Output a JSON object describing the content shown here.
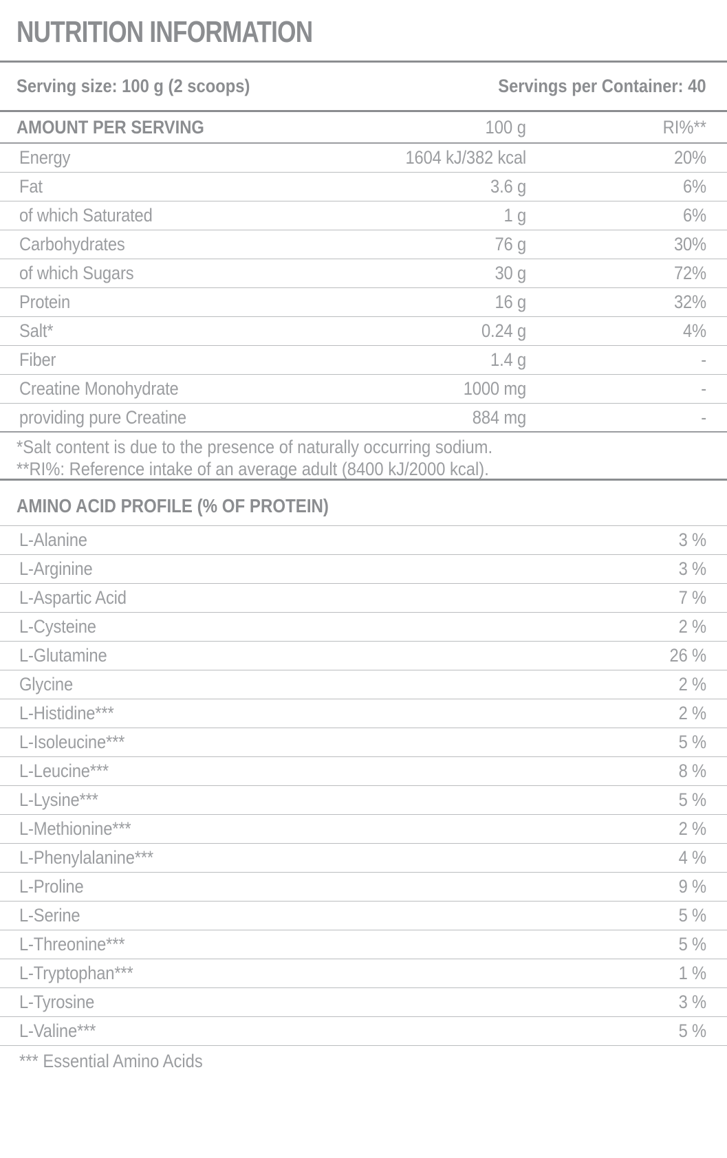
{
  "colors": {
    "heading_gray": "#8b8d90",
    "body_gray": "#9b9da0",
    "thin_rule": "#babcbe",
    "background": "#ffffff"
  },
  "title": "NUTRITION INFORMATION",
  "serving_info": {
    "serving_size": "Serving size: 100 g (2 scoops)",
    "servings_per_container": "Servings per Container: 40"
  },
  "amount_table": {
    "header": {
      "label": "AMOUNT PER SERVING",
      "amount": "100 g",
      "ri": "RI%**"
    },
    "rows": [
      {
        "label": "Energy",
        "amount": "1604 kJ/382 kcal",
        "ri": "20%"
      },
      {
        "label": "Fat",
        "amount": "3.6 g",
        "ri": "6%"
      },
      {
        "label": "of which Saturated",
        "amount": "1 g",
        "ri": "6%"
      },
      {
        "label": "Carbohydrates",
        "amount": "76 g",
        "ri": "30%"
      },
      {
        "label": "of which Sugars",
        "amount": "30 g",
        "ri": "72%"
      },
      {
        "label": "Protein",
        "amount": "16 g",
        "ri": "32%"
      },
      {
        "label": "Salt*",
        "amount": "0.24 g",
        "ri": "4%"
      },
      {
        "label": "Fiber",
        "amount": "1.4 g",
        "ri": "-"
      },
      {
        "label": "Creatine Monohydrate",
        "amount": "1000 mg",
        "ri": "-"
      },
      {
        "label": "providing pure Creatine",
        "amount": "884 mg",
        "ri": "-"
      }
    ],
    "footnotes": [
      "*Salt content is due to the presence of naturally occurring sodium.",
      "**RI%: Reference intake of an average adult (8400 kJ/2000 kcal)."
    ]
  },
  "amino_table": {
    "heading": "AMINO ACID PROFILE (% OF PROTEIN)",
    "rows": [
      {
        "label": "L-Alanine",
        "value": "3 %"
      },
      {
        "label": "L-Arginine",
        "value": "3 %"
      },
      {
        "label": "L-Aspartic Acid",
        "value": "7 %"
      },
      {
        "label": "L-Cysteine",
        "value": "2 %"
      },
      {
        "label": "L-Glutamine",
        "value": "26 %"
      },
      {
        "label": "Glycine",
        "value": "2 %"
      },
      {
        "label": "L-Histidine***",
        "value": "2 %"
      },
      {
        "label": "L-Isoleucine***",
        "value": "5 %"
      },
      {
        "label": "L-Leucine***",
        "value": "8 %"
      },
      {
        "label": "L-Lysine***",
        "value": "5 %"
      },
      {
        "label": "L-Methionine***",
        "value": "2 %"
      },
      {
        "label": "L-Phenylalanine***",
        "value": "4 %"
      },
      {
        "label": "L-Proline",
        "value": "9 %"
      },
      {
        "label": "L-Serine",
        "value": "5 %"
      },
      {
        "label": "L-Threonine***",
        "value": "5 %"
      },
      {
        "label": "L-Tryptophan***",
        "value": "1 %"
      },
      {
        "label": "L-Tyrosine",
        "value": "3 %"
      },
      {
        "label": "L-Valine***",
        "value": "5 %"
      }
    ],
    "footnote": "*** Essential Amino Acids"
  }
}
